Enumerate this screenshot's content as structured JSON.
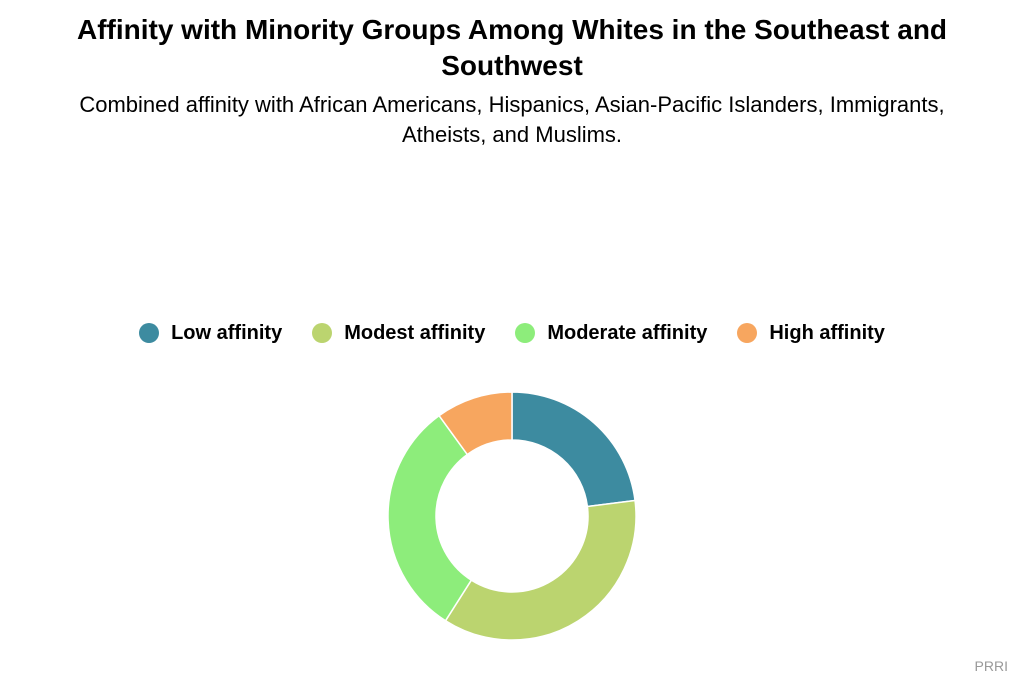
{
  "chart_data": {
    "type": "pie",
    "variant": "donut",
    "title": "Affinity with Minority Groups Among Whites in the Southeast and Southwest",
    "subtitle": "Combined affinity with African Americans, Hispanics, Asian-Pacific Islanders, Immigrants, Atheists, and Muslims.",
    "legend_position": "top",
    "slices": [
      {
        "name": "Low affinity",
        "value": 23,
        "color": "#3d8ba0"
      },
      {
        "name": "Modest affinity",
        "value": 36,
        "color": "#bbd46f"
      },
      {
        "name": "Moderate affinity",
        "value": 31,
        "color": "#8ded7b"
      },
      {
        "name": "High affinity",
        "value": 10,
        "color": "#f7a65f"
      }
    ]
  },
  "source": "PRRI"
}
